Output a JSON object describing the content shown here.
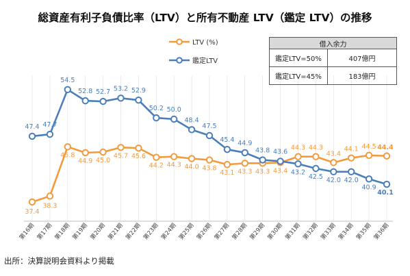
{
  "title": "総資産有利子負債比率（LTV）と所有不動産 LTV（鑑定 LTV）の推移",
  "source": "出所：決算説明会資料より掲載",
  "colors": {
    "ltv": "#f39a3d",
    "appraisal": "#4a7ebb",
    "grid": "#dedede"
  },
  "borrowing_table": {
    "header": "借入余力",
    "rows": [
      {
        "label": "鑑定LTV=50%",
        "value": "407億円"
      },
      {
        "label": "鑑定LTV=45%",
        "value": "183億円"
      }
    ]
  },
  "chart_data": {
    "type": "line",
    "title": "総資産有利子負債比率（LTV）と所有不動産 LTV（鑑定 LTV）の推移",
    "categories": [
      "第16期",
      "第17期",
      "第18期",
      "第19期",
      "第20期",
      "第21期",
      "第22期",
      "第23期",
      "第24期",
      "第25期",
      "第26期",
      "第27期",
      "第28期",
      "第29期",
      "第30期",
      "第31期",
      "第32期",
      "第33期",
      "第34期",
      "第35期",
      "第36期"
    ],
    "series": [
      {
        "name": "LTV (%)",
        "values": [
          37.4,
          38.3,
          45.8,
          44.9,
          45.0,
          45.7,
          45.6,
          44.2,
          44.3,
          44.0,
          43.8,
          43.1,
          43.3,
          43.3,
          43.4,
          44.3,
          44.3,
          43.4,
          44.1,
          44.5,
          44.4
        ]
      },
      {
        "name": "鑑定LTV",
        "values": [
          47.4,
          47.7,
          54.5,
          52.8,
          52.7,
          53.2,
          52.9,
          50.2,
          50.0,
          48.4,
          47.5,
          45.4,
          44.9,
          43.8,
          43.6,
          43.2,
          42.5,
          42.0,
          42.0,
          40.9,
          40.1
        ]
      }
    ],
    "legend": "top-left",
    "grid": false
  }
}
